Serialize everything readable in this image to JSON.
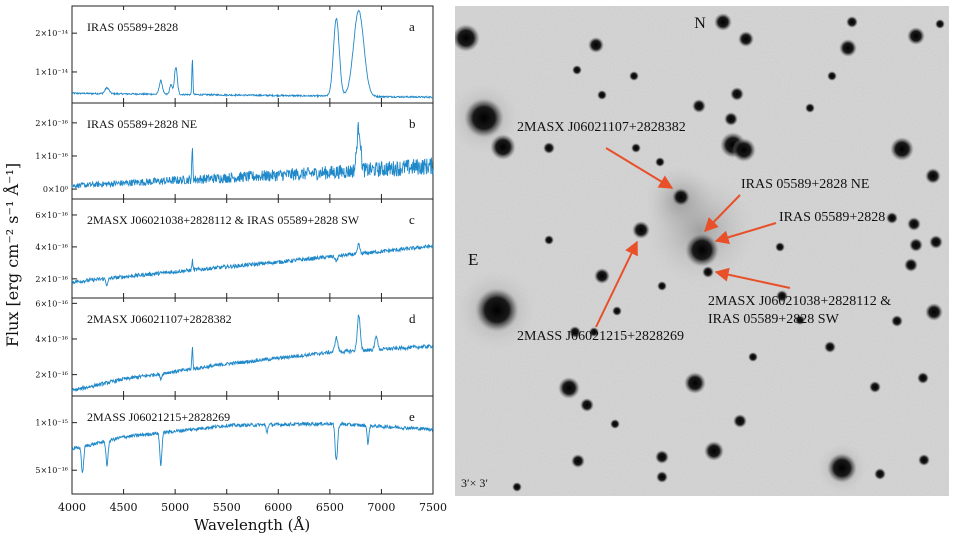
{
  "figure": {
    "ylabel": "Flux  [erg  cm⁻²  s⁻¹  Å⁻¹]",
    "xlabel": "Wavelength (Å)",
    "xticks": [
      "4000",
      "4500",
      "5000",
      "5500",
      "6000",
      "6500",
      "7000",
      "7500"
    ],
    "line_color": "#1f88c9",
    "arrow_color": "#e8502a"
  },
  "chart_data": {
    "type": "line",
    "x_range": [
      4000,
      7500
    ],
    "x_unit": "Angstrom",
    "panels": [
      {
        "letter": "a",
        "title": "IRAS 05589+2828",
        "yticks": [
          "2×10⁻¹⁴",
          "1×10⁻¹⁴"
        ],
        "ytick_values": [
          2e-14,
          1e-14
        ],
        "ylim": [
          2e-15,
          2.7e-14
        ],
        "continuum": [
          [
            4000,
            4.5e-15
          ],
          [
            7500,
            3.5e-15
          ]
        ],
        "features": [
          [
            4340,
            1.5e-15,
            20
          ],
          [
            4861,
            3.5e-15,
            15
          ],
          [
            4959,
            2.5e-15,
            12
          ],
          [
            5007,
            7e-15,
            14
          ],
          [
            5167,
            9e-15,
            5
          ],
          [
            6563,
            2e-14,
            28
          ],
          [
            6780,
            2.2e-14,
            50
          ]
        ],
        "noise": 2e-16
      },
      {
        "letter": "b",
        "title": "IRAS 05589+2828 NE",
        "yticks": [
          "2×10⁻¹⁶",
          "1×10⁻¹⁶",
          "0×10⁰"
        ],
        "ytick_values": [
          2e-16,
          1e-16,
          0
        ],
        "ylim": [
          -3e-17,
          2.6e-16
        ],
        "continuum": [
          [
            4000,
            1e-17
          ],
          [
            6500,
            5e-17
          ],
          [
            7500,
            7e-17
          ]
        ],
        "features": [
          [
            5167,
            9e-17,
            5
          ],
          [
            6780,
            1.3e-16,
            18
          ]
        ],
        "noise": 1.2e-17
      },
      {
        "letter": "c",
        "title": "2MASX J06021038+2828112  & IRAS 05589+2828 SW",
        "yticks": [
          "6×10⁻¹⁶",
          "4×10⁻¹⁶",
          "2×10⁻¹⁶"
        ],
        "ytick_values": [
          6e-16,
          4e-16,
          2e-16
        ],
        "ylim": [
          8e-17,
          7e-16
        ],
        "continuum": [
          [
            4000,
            1.8e-16
          ],
          [
            5000,
            2.45e-16
          ],
          [
            6000,
            3.05e-16
          ],
          [
            7500,
            4.05e-16
          ]
        ],
        "features": [
          [
            5167,
            6e-17,
            5
          ],
          [
            6780,
            6e-17,
            10
          ],
          [
            4340,
            -4e-17,
            10
          ],
          [
            6563,
            -3e-17,
            12
          ]
        ],
        "noise": 1.2e-17
      },
      {
        "letter": "d",
        "title": "2MASX J06021107+2828382",
        "yticks": [
          "6×10⁻¹⁶",
          "4×10⁻¹⁶",
          "2×10⁻¹⁶"
        ],
        "ytick_values": [
          6e-16,
          4e-16,
          2e-16
        ],
        "ylim": [
          8e-17,
          6.3e-16
        ],
        "continuum": [
          [
            4000,
            1.1e-16
          ],
          [
            4500,
            1.75e-16
          ],
          [
            5500,
            2.6e-16
          ],
          [
            6500,
            3.25e-16
          ],
          [
            7500,
            3.6e-16
          ]
        ],
        "features": [
          [
            5167,
            1.2e-16,
            5
          ],
          [
            6563,
            8e-17,
            14
          ],
          [
            6780,
            2e-16,
            14
          ],
          [
            6950,
            8e-17,
            12
          ],
          [
            4861,
            -3e-17,
            10
          ]
        ],
        "noise": 1e-17
      },
      {
        "letter": "e",
        "title": "2MASS J06021215+2828269",
        "yticks": [
          "1×10⁻¹⁵",
          "5×10⁻¹⁶"
        ],
        "ytick_values": [
          1e-15,
          5e-16
        ],
        "ylim": [
          2.5e-16,
          1.28e-15
        ],
        "continuum": [
          [
            4000,
            7.2e-16
          ],
          [
            4500,
            8.5e-16
          ],
          [
            5500,
            9.7e-16
          ],
          [
            6500,
            9.9e-16
          ],
          [
            7500,
            9.3e-16
          ]
        ],
        "features": [
          [
            4102,
            -2.8e-16,
            10
          ],
          [
            4340,
            -2.6e-16,
            10
          ],
          [
            4861,
            -3.4e-16,
            10
          ],
          [
            6563,
            -3.8e-16,
            12
          ],
          [
            6870,
            -2e-16,
            8
          ],
          [
            5890,
            -8e-17,
            8
          ]
        ],
        "noise": 1.8e-17
      }
    ]
  },
  "sky_image": {
    "north_label": "N",
    "east_label": "E",
    "scale_label": "3′× 3′",
    "labels": [
      "2MASX J06021107+2828382",
      "IRAS 05589+2828 NE",
      "IRAS 05589+2828",
      "2MASX J06021038+2828112  &",
      "IRAS 05589+2828 SW",
      "2MASS J06021215+2828269"
    ]
  }
}
